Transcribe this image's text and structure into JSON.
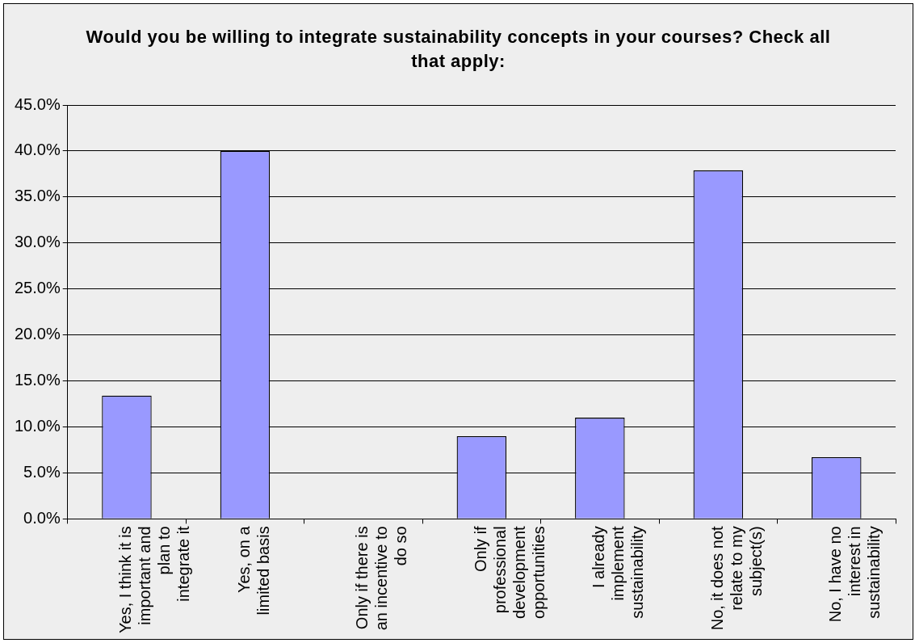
{
  "chart_data": {
    "type": "bar",
    "title": "Would you be willing to integrate sustainability concepts in your courses? Check all that apply:",
    "categories": [
      "Yes, I think it is important and plan to integrate it",
      "Yes, on a limited basis",
      "Only if there is an incentive to do so",
      "Only if professional development opportunities",
      "I already implement sustainability",
      "No, it does not relate to my subject(s)",
      "No, I have no interest in sustainability"
    ],
    "values": [
      13.4,
      40.0,
      0,
      9.0,
      11.0,
      37.9,
      6.7
    ],
    "color": "#9999ff",
    "ylim": [
      0,
      45
    ],
    "yticks": [
      {
        "value": 0,
        "label": "0.0%"
      },
      {
        "value": 5,
        "label": "5.0%"
      },
      {
        "value": 10,
        "label": "10.0%"
      },
      {
        "value": 15,
        "label": "15.0%"
      },
      {
        "value": 20,
        "label": "20.0%"
      },
      {
        "value": 25,
        "label": "25.0%"
      },
      {
        "value": 30,
        "label": "30.0%"
      },
      {
        "value": 35,
        "label": "35.0%"
      },
      {
        "value": 40,
        "label": "40.0%"
      },
      {
        "value": 45,
        "label": "45.0%"
      }
    ],
    "grid": "y",
    "legend": false
  }
}
